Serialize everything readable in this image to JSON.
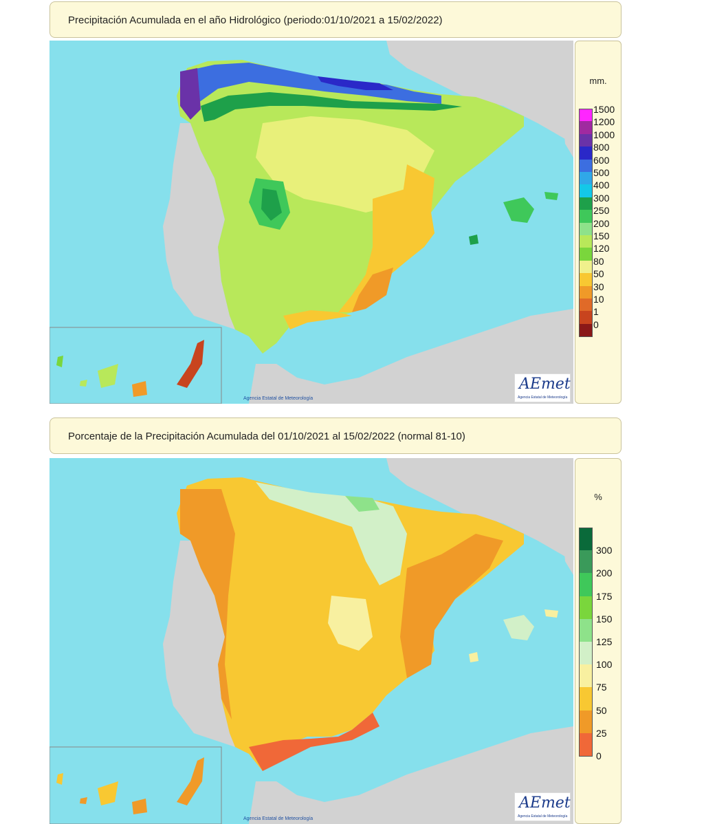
{
  "panels": [
    {
      "title": "Precipitación Acumulada en el año Hidrológico  (periodo:01/10/2021 a 15/02/2022)",
      "legend": {
        "unit": "mm.",
        "labels": [
          "1500",
          "1200",
          "1000",
          "800",
          "600",
          "500",
          "400",
          "300",
          "250",
          "200",
          "150",
          "120",
          "80",
          "50",
          "30",
          "10",
          "1",
          "0"
        ],
        "colors": [
          "#ff26ff",
          "#a02aa0",
          "#6a32a8",
          "#2a28c8",
          "#3c6ee0",
          "#30a8e8",
          "#14c8e8",
          "#1ea04a",
          "#3fc85a",
          "#8ee28a",
          "#b8e85a",
          "#7ad63c",
          "#f0f08c",
          "#f8c832",
          "#f09a28",
          "#e06a28",
          "#c8441e",
          "#8a1818"
        ]
      },
      "credit": "Agencia Estatal de Meteorología",
      "logo": {
        "main": "AEmet",
        "sub": "Agencia Estatal de Meteorología"
      }
    },
    {
      "title": "Porcentaje de la Precipitación Acumulada del 01/10/2021 al 15/02/2022 (normal 81-10)",
      "legend": {
        "unit": "%",
        "labels": [
          "300",
          "200",
          "175",
          "150",
          "125",
          "100",
          "75",
          "50",
          "25",
          "0"
        ],
        "colors": [
          "#0a6a3a",
          "#3a9a5a",
          "#3fc85a",
          "#7ad63c",
          "#8ee28a",
          "#d2f0c8",
          "#f8f0a0",
          "#f8c832",
          "#f09a28",
          "#f06838"
        ]
      },
      "credit": "Agencia Estatal de Meteorología",
      "logo": {
        "main": "AEmet",
        "sub": "Agencia Estatal de Meteorología"
      }
    }
  ],
  "map_colors": {
    "sea": "#86e0ec",
    "land_gray": "#d2d2d2",
    "border_line": "#c8b8c8"
  }
}
